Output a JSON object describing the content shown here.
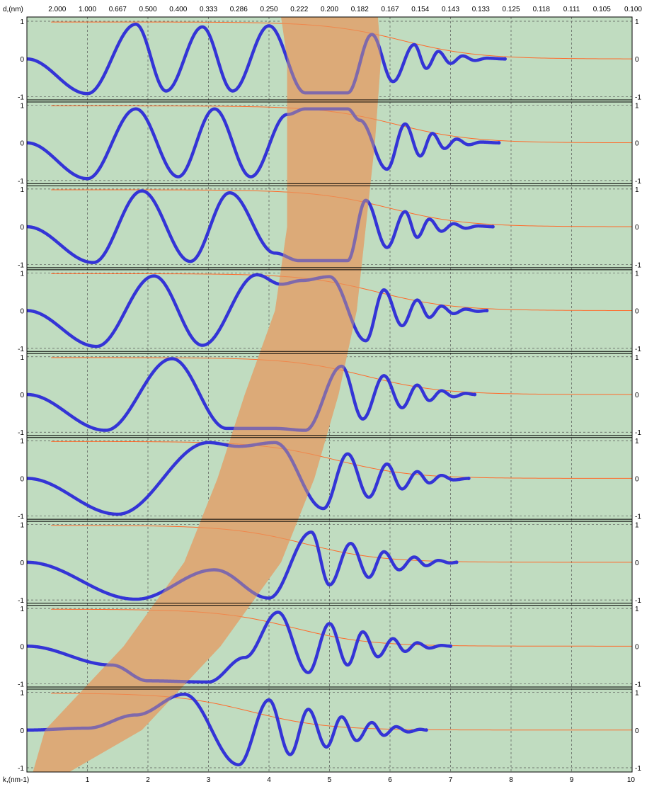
{
  "chart_data": {
    "type": "line",
    "xlabel": "k,(nm-1)",
    "x2label": "d,(nm)",
    "xlim": [
      0,
      10
    ],
    "x_ticks": [
      "1",
      "2",
      "3",
      "4",
      "5",
      "6",
      "7",
      "8",
      "9",
      "10"
    ],
    "x2_ticks": [
      "2.000",
      "1.000",
      "0.667",
      "0.500",
      "0.400",
      "0.333",
      "0.286",
      "0.250",
      "0.222",
      "0.200",
      "0.182",
      "0.167",
      "0.154",
      "0.143",
      "0.133",
      "0.125",
      "0.118",
      "0.111",
      "0.105",
      "0.100"
    ],
    "ylim": [
      -1,
      1
    ],
    "y_ticks": [
      "1",
      "0",
      "-1"
    ],
    "panels": 9,
    "grid": true,
    "colors": {
      "plot_background": "#c0dcc0",
      "signal": "#3434d6",
      "envelope": "#ff6a2a",
      "band": "#dcaa78",
      "grid": "#555555",
      "separator": "#000000"
    },
    "band_edges_k": {
      "left": [
        4.3,
        4.3,
        4.3,
        4.1,
        3.6,
        3.15,
        2.6,
        1.6,
        0.3
      ],
      "right": [
        5.85,
        5.75,
        5.6,
        5.45,
        5.15,
        4.75,
        4.2,
        3.2,
        1.9
      ]
    },
    "series": [
      {
        "panel": 1,
        "k_end": 7.9,
        "envelope_drop_k": 5.6,
        "wave": [
          [
            0,
            0
          ],
          [
            1.0,
            -0.92
          ],
          [
            1.8,
            0.92
          ],
          [
            2.3,
            -0.85
          ],
          [
            2.9,
            0.85
          ],
          [
            3.4,
            -0.85
          ],
          [
            4.0,
            0.88
          ],
          [
            4.6,
            -0.9
          ],
          [
            5.3,
            -0.9
          ],
          [
            5.7,
            0.65
          ],
          [
            6.05,
            -0.6
          ],
          [
            6.4,
            0.38
          ],
          [
            6.6,
            -0.25
          ],
          [
            6.8,
            0.2
          ],
          [
            7.0,
            -0.12
          ],
          [
            7.2,
            0.08
          ],
          [
            7.4,
            -0.04
          ],
          [
            7.6,
            0.02
          ],
          [
            7.9,
            0
          ]
        ]
      },
      {
        "panel": 2,
        "k_end": 7.8,
        "envelope_drop_k": 5.5,
        "wave": [
          [
            0,
            0
          ],
          [
            1.0,
            -0.95
          ],
          [
            1.8,
            0.9
          ],
          [
            2.5,
            -0.9
          ],
          [
            3.1,
            0.9
          ],
          [
            3.7,
            -0.9
          ],
          [
            4.3,
            0.75
          ],
          [
            4.6,
            0.9
          ],
          [
            5.3,
            0.9
          ],
          [
            5.5,
            0.6
          ],
          [
            5.95,
            -0.7
          ],
          [
            6.25,
            0.5
          ],
          [
            6.5,
            -0.35
          ],
          [
            6.7,
            0.25
          ],
          [
            6.9,
            -0.15
          ],
          [
            7.1,
            0.1
          ],
          [
            7.3,
            -0.05
          ],
          [
            7.5,
            0.02
          ],
          [
            7.8,
            0
          ]
        ]
      },
      {
        "panel": 3,
        "k_end": 7.7,
        "envelope_drop_k": 5.4,
        "wave": [
          [
            0,
            0
          ],
          [
            1.1,
            -0.95
          ],
          [
            1.9,
            0.95
          ],
          [
            2.7,
            -0.92
          ],
          [
            3.35,
            0.9
          ],
          [
            4.1,
            -0.7
          ],
          [
            4.5,
            -0.9
          ],
          [
            5.3,
            -0.9
          ],
          [
            5.6,
            0.7
          ],
          [
            5.95,
            -0.55
          ],
          [
            6.25,
            0.4
          ],
          [
            6.45,
            -0.28
          ],
          [
            6.65,
            0.2
          ],
          [
            6.85,
            -0.12
          ],
          [
            7.05,
            0.08
          ],
          [
            7.25,
            -0.04
          ],
          [
            7.45,
            0.02
          ],
          [
            7.7,
            0
          ]
        ]
      },
      {
        "panel": 4,
        "k_end": 7.6,
        "envelope_drop_k": 5.2,
        "wave": [
          [
            0,
            0
          ],
          [
            1.15,
            -0.95
          ],
          [
            2.1,
            0.92
          ],
          [
            2.9,
            -0.92
          ],
          [
            3.8,
            0.95
          ],
          [
            4.2,
            0.7
          ],
          [
            4.55,
            0.8
          ],
          [
            5.0,
            0.9
          ],
          [
            5.6,
            -0.8
          ],
          [
            5.9,
            0.55
          ],
          [
            6.2,
            -0.4
          ],
          [
            6.45,
            0.28
          ],
          [
            6.65,
            -0.18
          ],
          [
            6.85,
            0.12
          ],
          [
            7.05,
            -0.08
          ],
          [
            7.25,
            0.04
          ],
          [
            7.45,
            -0.02
          ],
          [
            7.6,
            0
          ]
        ]
      },
      {
        "panel": 5,
        "k_end": 7.4,
        "envelope_drop_k": 5.0,
        "wave": [
          [
            0,
            0
          ],
          [
            1.3,
            -0.95
          ],
          [
            2.4,
            0.95
          ],
          [
            3.3,
            -0.9
          ],
          [
            4.1,
            -0.9
          ],
          [
            4.6,
            -0.95
          ],
          [
            5.2,
            0.75
          ],
          [
            5.55,
            -0.65
          ],
          [
            5.9,
            0.5
          ],
          [
            6.2,
            -0.35
          ],
          [
            6.45,
            0.25
          ],
          [
            6.65,
            -0.16
          ],
          [
            6.85,
            0.1
          ],
          [
            7.05,
            -0.06
          ],
          [
            7.25,
            0.03
          ],
          [
            7.4,
            0
          ]
        ]
      },
      {
        "panel": 6,
        "k_end": 7.3,
        "envelope_drop_k": 4.5,
        "wave": [
          [
            0,
            0
          ],
          [
            1.5,
            -0.95
          ],
          [
            3.0,
            0.95
          ],
          [
            3.5,
            0.85
          ],
          [
            4.1,
            0.95
          ],
          [
            4.9,
            -0.8
          ],
          [
            5.3,
            0.65
          ],
          [
            5.65,
            -0.5
          ],
          [
            5.95,
            0.38
          ],
          [
            6.2,
            -0.28
          ],
          [
            6.45,
            0.18
          ],
          [
            6.65,
            -0.12
          ],
          [
            6.85,
            0.08
          ],
          [
            7.05,
            -0.04
          ],
          [
            7.3,
            0
          ]
        ]
      },
      {
        "panel": 7,
        "k_end": 7.1,
        "envelope_drop_k": 4.0,
        "wave": [
          [
            0,
            0
          ],
          [
            1.8,
            -0.98
          ],
          [
            3.1,
            -0.2
          ],
          [
            4.0,
            -0.95
          ],
          [
            4.7,
            0.8
          ],
          [
            5.0,
            -0.6
          ],
          [
            5.35,
            0.5
          ],
          [
            5.65,
            -0.4
          ],
          [
            5.9,
            0.28
          ],
          [
            6.15,
            -0.2
          ],
          [
            6.4,
            0.14
          ],
          [
            6.6,
            -0.09
          ],
          [
            6.8,
            0.05
          ],
          [
            7.0,
            -0.02
          ],
          [
            7.1,
            0
          ]
        ]
      },
      {
        "panel": 8,
        "k_end": 7.0,
        "envelope_drop_k": 3.8,
        "wave": [
          [
            0,
            0
          ],
          [
            1.4,
            -0.5
          ],
          [
            2.0,
            -0.92
          ],
          [
            3.0,
            -0.95
          ],
          [
            3.6,
            -0.3
          ],
          [
            4.15,
            0.9
          ],
          [
            4.65,
            -0.7
          ],
          [
            5.0,
            0.6
          ],
          [
            5.3,
            -0.5
          ],
          [
            5.55,
            0.38
          ],
          [
            5.8,
            -0.28
          ],
          [
            6.05,
            0.2
          ],
          [
            6.25,
            -0.14
          ],
          [
            6.45,
            0.09
          ],
          [
            6.65,
            -0.05
          ],
          [
            6.85,
            0.02
          ],
          [
            7.0,
            0
          ]
        ]
      },
      {
        "panel": 9,
        "k_end": 6.6,
        "envelope_drop_k": 3.1,
        "wave": [
          [
            0,
            0
          ],
          [
            1.0,
            0.05
          ],
          [
            1.8,
            0.4
          ],
          [
            2.6,
            0.95
          ],
          [
            3.5,
            -0.92
          ],
          [
            4.0,
            0.8
          ],
          [
            4.35,
            -0.65
          ],
          [
            4.65,
            0.55
          ],
          [
            4.95,
            -0.45
          ],
          [
            5.2,
            0.35
          ],
          [
            5.45,
            -0.28
          ],
          [
            5.7,
            0.2
          ],
          [
            5.9,
            -0.14
          ],
          [
            6.1,
            0.09
          ],
          [
            6.3,
            -0.05
          ],
          [
            6.5,
            0.02
          ],
          [
            6.6,
            0
          ]
        ]
      }
    ]
  }
}
